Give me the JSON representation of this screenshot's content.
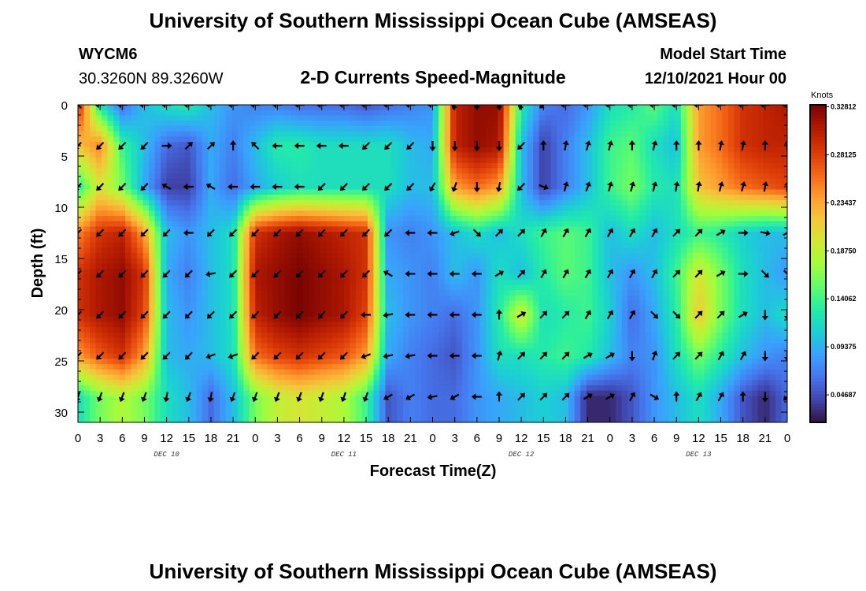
{
  "header": {
    "title": "University of Southern Mississippi Ocean Cube (AMSEAS)",
    "station": "WYCM6",
    "coords": "30.3260N  89.3260W",
    "subtitle": "2-D Currents Speed-Magnitude",
    "model_label": "Model Start Time",
    "model_time": "12/10/2021 Hour 00"
  },
  "footer": {
    "title": "University of Southern Mississippi Ocean Cube (AMSEAS)"
  },
  "colors": {
    "background": "#ffffff",
    "arrow": "#000000",
    "scale": [
      "#30123b",
      "#4145ab",
      "#4675ed",
      "#39a2fc",
      "#1bcfd4",
      "#24eca6",
      "#61fc6c",
      "#a4fc3b",
      "#d1e834",
      "#f3c63a",
      "#fe9b2d",
      "#f36315",
      "#d93806",
      "#b11901",
      "#7a0402"
    ]
  },
  "chart_data": {
    "type": "heatmap",
    "title": "2-D Currents Speed-Magnitude",
    "xlabel": "Forecast Time(Z)",
    "ylabel": "Depth (ft)",
    "xlim": [
      0,
      96
    ],
    "ylim": [
      31,
      0
    ],
    "x_tick_labels": [
      "0",
      "3",
      "6",
      "9",
      "12",
      "15",
      "18",
      "21",
      "0",
      "3",
      "6",
      "9",
      "12",
      "15",
      "18",
      "21",
      "0",
      "3",
      "6",
      "9",
      "12",
      "15",
      "18",
      "21",
      "0",
      "3",
      "6",
      "9",
      "12",
      "15",
      "18",
      "21",
      "0"
    ],
    "y_ticks": [
      0,
      5,
      10,
      15,
      20,
      25,
      30
    ],
    "y_tick_labels": [
      "0",
      "5",
      "10",
      "15",
      "20",
      "25",
      "30"
    ],
    "day_labels": [
      {
        "label": "DEC 10",
        "hour": 12
      },
      {
        "label": "DEC 11",
        "hour": 36
      },
      {
        "label": "DEC 12",
        "hour": 60
      },
      {
        "label": "DEC 13",
        "hour": 84
      }
    ],
    "depths": [
      0,
      4,
      8,
      12.5,
      16.5,
      20.5,
      24.5,
      28.5
    ],
    "times": [
      0,
      3,
      6,
      9,
      12,
      15,
      18,
      21,
      24,
      27,
      30,
      33,
      36,
      39,
      42,
      45,
      48,
      51,
      54,
      57,
      60,
      63,
      66,
      69,
      72,
      75,
      78,
      81,
      84,
      87,
      90,
      93,
      96
    ],
    "speed_knots": [
      [
        0.3,
        0.12,
        0.06,
        0.1,
        0.12,
        0.13,
        0.1,
        0.08,
        0.07,
        0.07,
        0.06,
        0.06,
        0.06,
        0.05,
        0.06,
        0.07,
        0.08,
        0.3,
        0.32,
        0.32,
        0.13,
        0.07,
        0.06,
        0.08,
        0.12,
        0.13,
        0.15,
        0.12,
        0.24,
        0.26,
        0.29,
        0.3,
        0.31
      ],
      [
        0.22,
        0.25,
        0.14,
        0.1,
        0.06,
        0.05,
        0.09,
        0.07,
        0.1,
        0.13,
        0.13,
        0.12,
        0.12,
        0.12,
        0.12,
        0.1,
        0.09,
        0.3,
        0.32,
        0.31,
        0.1,
        0.04,
        0.07,
        0.1,
        0.14,
        0.15,
        0.12,
        0.1,
        0.24,
        0.26,
        0.29,
        0.3,
        0.3
      ],
      [
        0.13,
        0.2,
        0.16,
        0.09,
        0.04,
        0.04,
        0.09,
        0.06,
        0.09,
        0.11,
        0.12,
        0.12,
        0.12,
        0.12,
        0.12,
        0.1,
        0.1,
        0.24,
        0.26,
        0.24,
        0.1,
        0.04,
        0.07,
        0.1,
        0.14,
        0.16,
        0.13,
        0.12,
        0.22,
        0.24,
        0.26,
        0.27,
        0.28
      ],
      [
        0.25,
        0.29,
        0.3,
        0.24,
        0.1,
        0.08,
        0.1,
        0.12,
        0.29,
        0.31,
        0.32,
        0.31,
        0.3,
        0.29,
        0.08,
        0.07,
        0.08,
        0.1,
        0.12,
        0.1,
        0.12,
        0.14,
        0.15,
        0.14,
        0.1,
        0.12,
        0.1,
        0.12,
        0.14,
        0.13,
        0.11,
        0.1,
        0.1
      ],
      [
        0.29,
        0.31,
        0.32,
        0.29,
        0.09,
        0.07,
        0.1,
        0.12,
        0.31,
        0.32,
        0.33,
        0.32,
        0.31,
        0.29,
        0.09,
        0.08,
        0.07,
        0.1,
        0.08,
        0.12,
        0.1,
        0.13,
        0.15,
        0.14,
        0.1,
        0.08,
        0.1,
        0.14,
        0.2,
        0.16,
        0.12,
        0.1,
        0.08
      ],
      [
        0.29,
        0.31,
        0.32,
        0.28,
        0.1,
        0.08,
        0.1,
        0.12,
        0.3,
        0.32,
        0.33,
        0.32,
        0.31,
        0.28,
        0.1,
        0.08,
        0.07,
        0.06,
        0.08,
        0.13,
        0.2,
        0.12,
        0.13,
        0.14,
        0.11,
        0.06,
        0.09,
        0.13,
        0.22,
        0.16,
        0.12,
        0.1,
        0.12
      ],
      [
        0.24,
        0.27,
        0.29,
        0.24,
        0.1,
        0.09,
        0.1,
        0.12,
        0.26,
        0.28,
        0.29,
        0.28,
        0.27,
        0.24,
        0.09,
        0.07,
        0.06,
        0.05,
        0.08,
        0.12,
        0.12,
        0.13,
        0.14,
        0.13,
        0.1,
        0.07,
        0.08,
        0.12,
        0.16,
        0.13,
        0.1,
        0.08,
        0.07
      ],
      [
        0.12,
        0.16,
        0.18,
        0.16,
        0.12,
        0.1,
        0.06,
        0.1,
        0.16,
        0.19,
        0.2,
        0.19,
        0.18,
        0.14,
        0.05,
        0.07,
        0.06,
        0.06,
        0.08,
        0.09,
        0.1,
        0.11,
        0.1,
        0.03,
        0.03,
        0.05,
        0.08,
        0.1,
        0.12,
        0.09,
        0.05,
        0.03,
        0.06
      ]
    ],
    "arrow_dir_deg": [
      [
        315,
        270,
        270,
        270,
        270,
        270,
        270,
        270,
        270,
        270,
        270,
        270,
        270,
        270,
        270,
        270,
        270,
        200,
        180,
        180,
        200,
        230,
        270,
        270,
        270,
        270,
        270,
        270,
        270,
        270,
        270,
        270,
        270
      ],
      [
        225,
        225,
        225,
        225,
        90,
        45,
        45,
        0,
        315,
        270,
        270,
        270,
        270,
        225,
        225,
        225,
        180,
        180,
        180,
        180,
        225,
        0,
        10,
        15,
        15,
        0,
        15,
        0,
        0,
        10,
        10,
        0,
        0
      ],
      [
        225,
        225,
        225,
        225,
        300,
        270,
        300,
        270,
        270,
        270,
        270,
        225,
        225,
        225,
        225,
        225,
        210,
        200,
        180,
        190,
        225,
        110,
        15,
        20,
        15,
        15,
        15,
        10,
        10,
        15,
        15,
        10,
        5
      ],
      [
        225,
        225,
        225,
        225,
        225,
        270,
        225,
        225,
        225,
        225,
        225,
        225,
        225,
        225,
        225,
        270,
        270,
        250,
        135,
        45,
        45,
        30,
        30,
        30,
        30,
        30,
        30,
        45,
        45,
        60,
        90,
        100,
        60
      ],
      [
        225,
        225,
        225,
        225,
        225,
        225,
        260,
        225,
        225,
        225,
        225,
        225,
        225,
        225,
        300,
        270,
        270,
        270,
        270,
        60,
        45,
        30,
        30,
        30,
        30,
        30,
        30,
        45,
        45,
        60,
        90,
        135,
        135
      ],
      [
        225,
        225,
        225,
        225,
        225,
        225,
        225,
        225,
        225,
        225,
        225,
        225,
        225,
        270,
        260,
        270,
        270,
        270,
        270,
        0,
        60,
        45,
        45,
        30,
        30,
        30,
        135,
        135,
        45,
        45,
        60,
        180,
        180
      ],
      [
        225,
        225,
        225,
        225,
        225,
        225,
        250,
        250,
        225,
        225,
        225,
        225,
        225,
        250,
        260,
        260,
        270,
        270,
        270,
        15,
        45,
        45,
        45,
        60,
        60,
        180,
        20,
        45,
        45,
        30,
        30,
        180,
        180
      ],
      [
        200,
        200,
        200,
        200,
        190,
        200,
        190,
        200,
        200,
        200,
        200,
        200,
        200,
        200,
        240,
        240,
        260,
        240,
        270,
        0,
        45,
        45,
        45,
        60,
        60,
        30,
        120,
        0,
        30,
        30,
        0,
        180,
        225
      ]
    ],
    "colorbar": {
      "label": "Knots",
      "range": [
        0.02,
        0.33
      ],
      "ticks": [
        "0.32812",
        "0.28125",
        "0.23437",
        "0.18750",
        "0.14062",
        "0.09375",
        "0.04687"
      ],
      "tick_values": [
        0.32812,
        0.28125,
        0.23437,
        0.1875,
        0.14062,
        0.09375,
        0.04687
      ]
    }
  }
}
